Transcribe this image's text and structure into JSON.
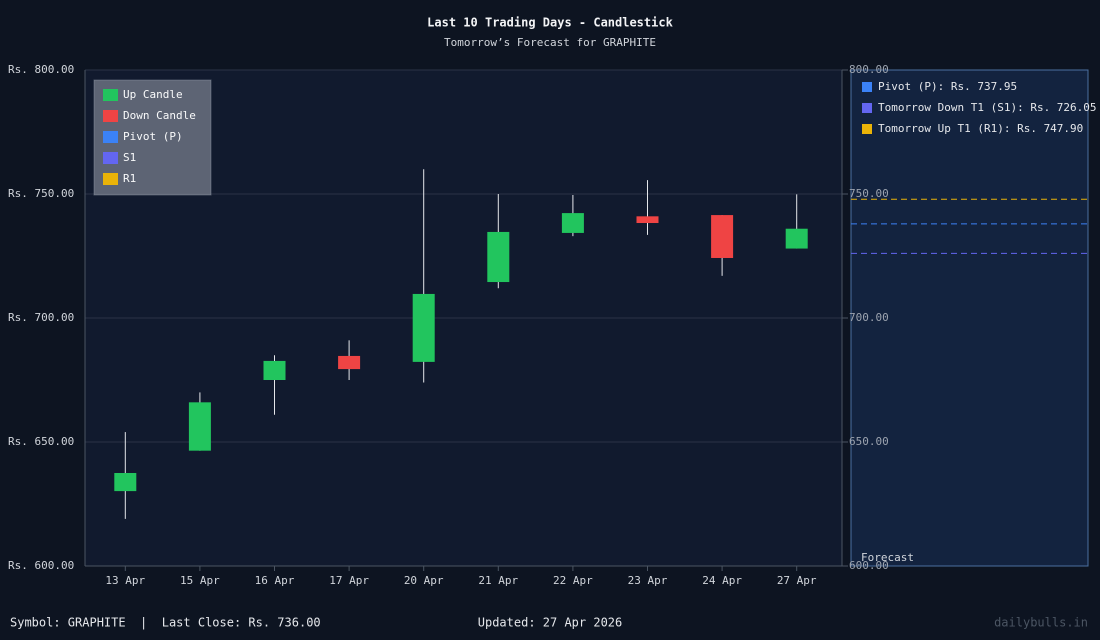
{
  "chart_data": {
    "type": "candlestick",
    "title": "Last 10 Trading Days - Candlestick",
    "subtitle": "Tomorrow’s Forecast for GRAPHITE",
    "categories": [
      "13 Apr",
      "15 Apr",
      "16 Apr",
      "17 Apr",
      "20 Apr",
      "21 Apr",
      "22 Apr",
      "23 Apr",
      "24 Apr",
      "27 Apr"
    ],
    "open": [
      630.2,
      646.5,
      675,
      684.7,
      682.3,
      714.5,
      734.3,
      741,
      741.5,
      728
    ],
    "high": [
      654,
      670,
      685,
      691,
      760,
      750,
      749.6,
      755.6,
      741.5,
      749.85
    ],
    "low": [
      619,
      646.5,
      661,
      675,
      674,
      712,
      733,
      733.5,
      717,
      728
    ],
    "close": [
      637.5,
      666,
      682.7,
      679.4,
      709.7,
      734.7,
      742.3,
      738.3,
      724.2,
      736
    ],
    "ylim": [
      600,
      800
    ],
    "yticks": [
      {
        "value": 600,
        "label": "Rs. 600.00"
      },
      {
        "value": 650,
        "label": "Rs. 650.00"
      },
      {
        "value": 700,
        "label": "Rs. 700.00"
      },
      {
        "value": 750,
        "label": "Rs. 750.00"
      },
      {
        "value": 800,
        "label": "Rs. 800.00"
      }
    ],
    "y2lim": [
      600,
      800
    ],
    "y2ticks": [
      {
        "value": 600,
        "label": "600.00"
      },
      {
        "value": 650,
        "label": "650.00"
      },
      {
        "value": 700,
        "label": "700.00"
      },
      {
        "value": 750,
        "label": "750.00"
      },
      {
        "value": 800,
        "label": "800.00"
      }
    ],
    "grid": true,
    "legend": [
      {
        "name": "Up Candle",
        "color": "#22c55e"
      },
      {
        "name": "Down Candle",
        "color": "#ef4444"
      },
      {
        "name": "Pivot (P)",
        "color": "#3b82f6"
      },
      {
        "name": "S1",
        "color": "#6366f1"
      },
      {
        "name": "R1",
        "color": "#eab308"
      }
    ],
    "legend_position": "upper left",
    "forecast": {
      "label": "Forecast",
      "levels": [
        {
          "label": "Pivot (P): Rs. 737.95",
          "value": 737.95,
          "color": "#3b82f6"
        },
        {
          "label": "Tomorrow Down T1 (S1): Rs. 726.05",
          "value": 726.05,
          "color": "#6366f1"
        },
        {
          "label": "Tomorrow Up T1 (R1): Rs. 747.90",
          "value": 747.9,
          "color": "#eab308"
        }
      ]
    }
  },
  "footer": {
    "left": "Symbol: GRAPHITE  |  Last Close: Rs. 736.00",
    "center": "Updated: 27 Apr 2026",
    "right": "dailybulls.in"
  }
}
